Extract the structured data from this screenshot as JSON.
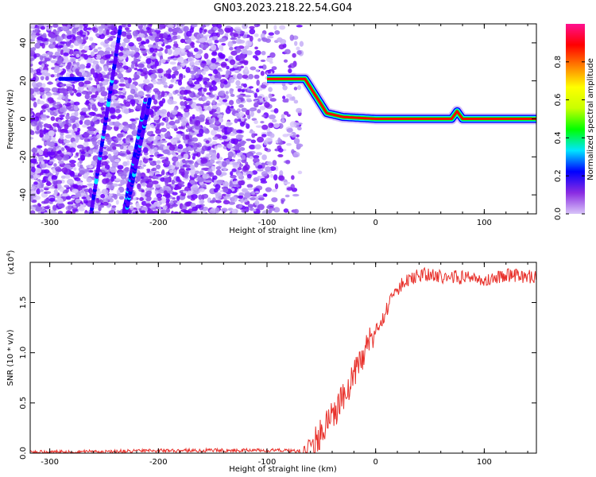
{
  "title": "GN03.2023.218.22.54.G04",
  "chart_data": [
    {
      "type": "heatmap",
      "xlabel": "Height of straight line (km)",
      "ylabel": "Frequency (Hz)",
      "xlim": [
        -318,
        148
      ],
      "ylim": [
        -50,
        50
      ],
      "x_ticks": [
        -300,
        -200,
        -100,
        0,
        100
      ],
      "y_ticks": [
        -40,
        -20,
        0,
        20,
        40
      ],
      "colorbar": {
        "label": "Normalized spectral amplitude",
        "range": [
          0,
          1
        ],
        "ticks": [
          0.0,
          0.2,
          0.4,
          0.6,
          0.8
        ],
        "colormap": [
          "#d8c4f8",
          "#8a2be2",
          "#0000ff",
          "#00e5ff",
          "#00ff00",
          "#c8ff00",
          "#ffff00",
          "#ff8000",
          "#ff0000",
          "#ff1090"
        ]
      },
      "ridge_track": {
        "x": [
          -100,
          -65,
          -45,
          -30,
          0,
          70,
          75,
          80,
          148
        ],
        "freq": [
          21,
          21,
          3,
          1,
          0,
          0,
          4,
          0,
          0
        ]
      },
      "streak_tracks": [
        {
          "x": [
            -262,
            -235
          ],
          "freq": [
            -50,
            48
          ]
        },
        {
          "x": [
            -232,
            -212
          ],
          "freq": [
            -50,
            10
          ]
        },
        {
          "x": [
            -230,
            -208
          ],
          "freq": [
            -50,
            10
          ]
        }
      ],
      "grid": false
    },
    {
      "type": "line",
      "xlabel": "Height of straight line (km)",
      "ylabel": "SNR (10 * v/v)",
      "y_multiplier_label": "(x10",
      "y_multiplier_exp": "4",
      "xlim": [
        -318,
        148
      ],
      "ylim": [
        0,
        19000
      ],
      "x_ticks": [
        -300,
        -200,
        -100,
        0,
        100
      ],
      "y_ticks": [
        0,
        5000,
        10000,
        15000
      ],
      "y_tick_labels": [
        "0.0",
        "0.5",
        "1.0",
        "1.5"
      ],
      "series": [
        {
          "color": "#e8302a",
          "x": [
            -318,
            -250,
            -200,
            -100,
            -70,
            -55,
            -45,
            -35,
            -25,
            -15,
            -5,
            5,
            15,
            25,
            35,
            45,
            60,
            80,
            100,
            120,
            148
          ],
          "values": [
            100,
            150,
            250,
            300,
            200,
            1200,
            3000,
            4500,
            6500,
            9000,
            11500,
            13000,
            15500,
            17000,
            17500,
            17800,
            17600,
            17500,
            17300,
            17700,
            17500
          ]
        }
      ],
      "grid": false
    }
  ]
}
